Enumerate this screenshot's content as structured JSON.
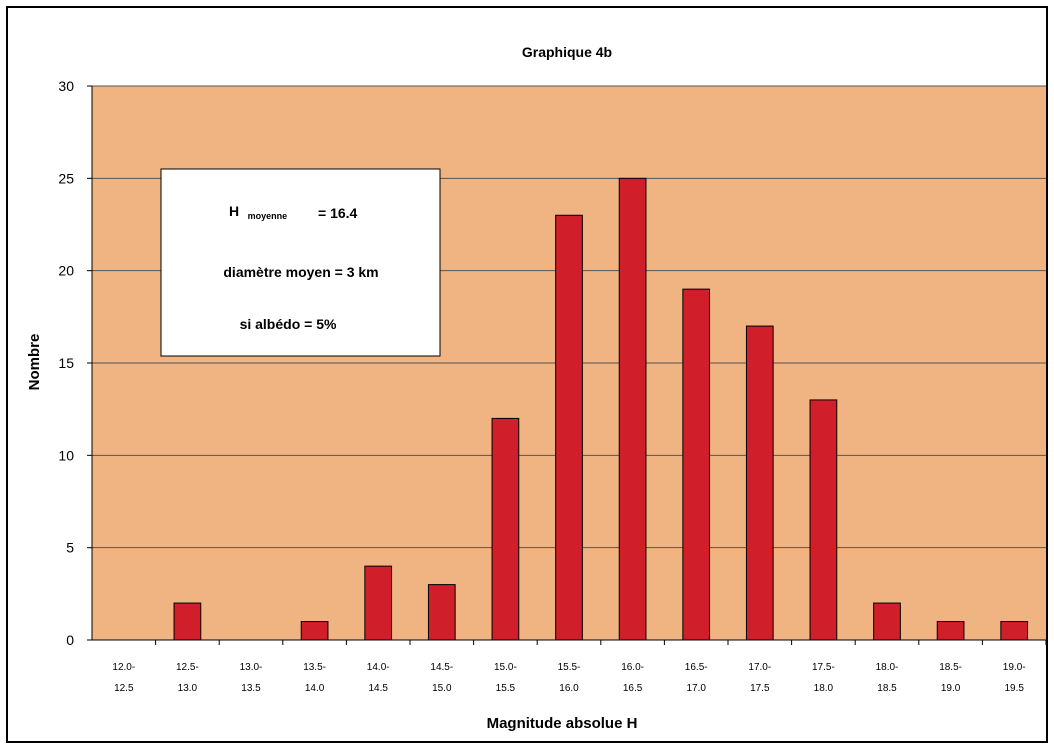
{
  "chart_data": {
    "type": "bar",
    "title": "Graphique 4b",
    "xlabel": "Magnitude absolue H",
    "ylabel": "Nombre",
    "ylim": [
      0,
      30
    ],
    "yticks": [
      "0",
      "5",
      "10",
      "15",
      "20",
      "25",
      "30"
    ],
    "categories": [
      [
        "12.0-",
        "12.5"
      ],
      [
        "12.5-",
        "13.0"
      ],
      [
        "13.0-",
        "13.5"
      ],
      [
        "13.5-",
        "14.0"
      ],
      [
        "14.0-",
        "14.5"
      ],
      [
        "14.5-",
        "15.0"
      ],
      [
        "15.0-",
        "15.5"
      ],
      [
        "15.5-",
        "16.0"
      ],
      [
        "16.0-",
        "16.5"
      ],
      [
        "16.5-",
        "17.0"
      ],
      [
        "17.0-",
        "17.5"
      ],
      [
        "17.5-",
        "18.0"
      ],
      [
        "18.0-",
        "18.5"
      ],
      [
        "18.5-",
        "19.0"
      ],
      [
        "19.0-",
        "19.5"
      ]
    ],
    "values": [
      0,
      2,
      0,
      1,
      4,
      3,
      12,
      23,
      25,
      19,
      17,
      13,
      2,
      1,
      1
    ],
    "grid": true,
    "colors": {
      "bar": "#d01f2a",
      "plot_background": "#f0b482",
      "gridline": "#555555",
      "annotation_background": "#ffffff"
    },
    "annotation": {
      "line1_main": "H",
      "line1_sub": "moyenne",
      "line1_value": "= 16.4",
      "line2": "diamètre moyen = 3 km",
      "line3": "si albédo = 5%"
    }
  }
}
